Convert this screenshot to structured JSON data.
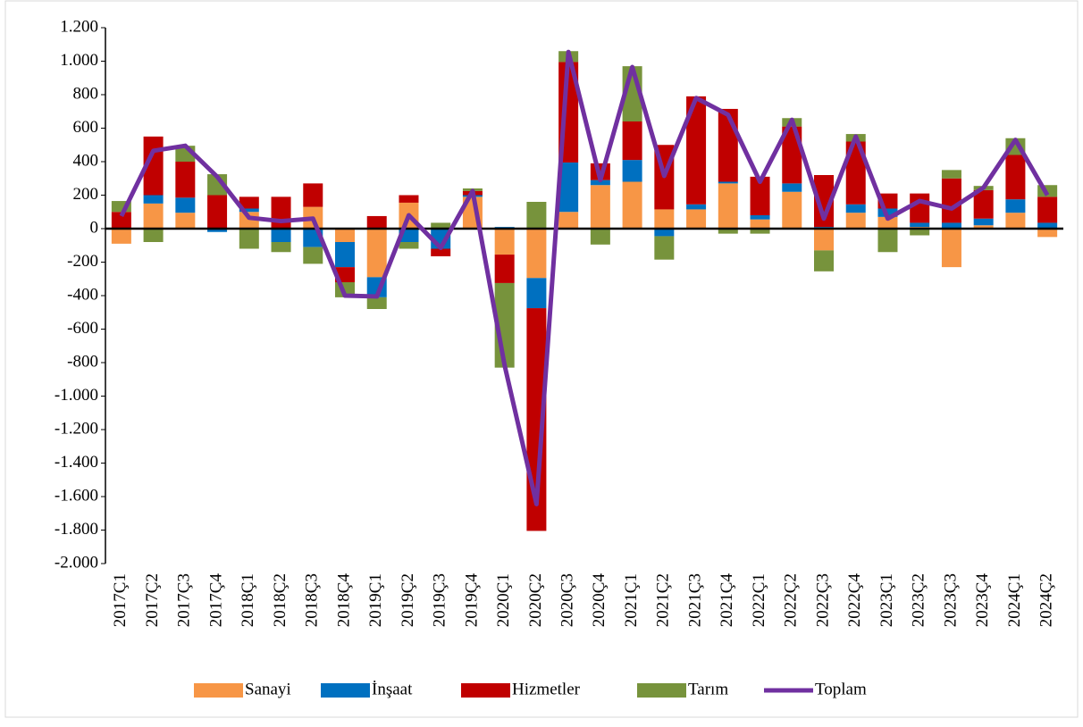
{
  "chart_data": {
    "type": "bar",
    "stacked": true,
    "categories": [
      "2017Ç1",
      "2017Ç2",
      "2017Ç3",
      "2017Ç4",
      "2018Ç1",
      "2018Ç2",
      "2018Ç3",
      "2018Ç4",
      "2019Ç1",
      "2019Ç2",
      "2019Ç3",
      "2019Ç4",
      "2020Ç1",
      "2020Ç2",
      "2020Ç3",
      "2020Ç4",
      "2021Ç1",
      "2021Ç2",
      "2021Ç3",
      "2021Ç4",
      "2022Ç1",
      "2022Ç2",
      "2022Ç3",
      "2022Ç4",
      "2023Ç1",
      "2023Ç2",
      "2023Ç3",
      "2023Ç4",
      "2024Ç1",
      "2024Ç2"
    ],
    "series": [
      {
        "name": "Sanayi",
        "color": "#f79646",
        "values": [
          -90,
          150,
          95,
          0,
          100,
          0,
          130,
          -80,
          -290,
          155,
          0,
          190,
          -155,
          -295,
          100,
          260,
          280,
          115,
          115,
          270,
          55,
          220,
          -130,
          95,
          70,
          10,
          -230,
          20,
          95,
          -50
        ]
      },
      {
        "name": "İnşaat",
        "color": "#0070c0",
        "values": [
          5,
          50,
          90,
          -20,
          20,
          -80,
          -110,
          -150,
          -120,
          -80,
          -120,
          10,
          10,
          -180,
          295,
          30,
          130,
          -45,
          30,
          10,
          25,
          50,
          10,
          50,
          50,
          25,
          35,
          40,
          80,
          35
        ]
      },
      {
        "name": "Hizmetler",
        "color": "#c00000",
        "values": [
          95,
          350,
          215,
          200,
          70,
          190,
          140,
          -90,
          75,
          45,
          -45,
          25,
          -170,
          -1330,
          600,
          100,
          230,
          385,
          645,
          435,
          230,
          340,
          310,
          375,
          90,
          175,
          265,
          170,
          265,
          155
        ]
      },
      {
        "name": "Tarım",
        "color": "#77933c",
        "values": [
          65,
          -80,
          95,
          125,
          -120,
          -60,
          -100,
          -90,
          -70,
          -40,
          35,
          15,
          -505,
          160,
          65,
          -95,
          330,
          -140,
          0,
          -30,
          -30,
          50,
          -125,
          45,
          -140,
          -40,
          50,
          25,
          100,
          70
        ]
      },
      {
        "name": "Toplam",
        "type": "line",
        "color": "#7030a0",
        "values": [
          75,
          465,
          495,
          310,
          65,
          45,
          60,
          -400,
          -405,
          80,
          -115,
          225,
          -815,
          -1645,
          1055,
          290,
          965,
          315,
          780,
          680,
          280,
          650,
          60,
          550,
          60,
          165,
          120,
          245,
          530,
          200
        ]
      }
    ],
    "ylim": [
      -2000,
      1200
    ],
    "yticks": [
      {
        "value": -2000,
        "label": "-2.000"
      },
      {
        "value": -1800,
        "label": "-1.800"
      },
      {
        "value": -1600,
        "label": "-1.600"
      },
      {
        "value": -1400,
        "label": "-1.400"
      },
      {
        "value": -1200,
        "label": "-1.200"
      },
      {
        "value": -1000,
        "label": "-1.000"
      },
      -800,
      -600,
      -400,
      -200,
      0,
      200,
      400,
      600,
      800,
      {
        "value": 1000,
        "label": "1.000"
      },
      {
        "value": 1200,
        "label": "1.200"
      }
    ],
    "grid": false,
    "legend": "bottom"
  }
}
